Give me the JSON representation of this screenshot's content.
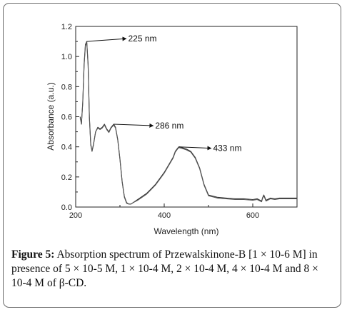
{
  "chart_data": {
    "type": "line",
    "xlabel": "Wavelength (nm)",
    "ylabel": "Absorbance (a.u.)",
    "xlim": [
      200,
      700
    ],
    "ylim": [
      0,
      1.2
    ],
    "xticks": [
      "200",
      "400",
      "600"
    ],
    "yticks": [
      "0.0",
      "0.2",
      "0.4",
      "0.6",
      "0.8",
      "1.0",
      "1.2"
    ],
    "grid": false,
    "series": [
      {
        "color": "#333333",
        "x": [
          210,
          213,
          216,
          219,
          222,
          225,
          228,
          231,
          234,
          237,
          240,
          245,
          250,
          255,
          260,
          265,
          270,
          275,
          280,
          286,
          290,
          295,
          300,
          305,
          310,
          315,
          320,
          325,
          330,
          340,
          350,
          360,
          370,
          380,
          390,
          400,
          410,
          420,
          425,
          430,
          433,
          440,
          450,
          460,
          470,
          480,
          490,
          500,
          520,
          540,
          560,
          580,
          600,
          610,
          620,
          622,
          625,
          630,
          640,
          650,
          660,
          670,
          680,
          690,
          700
        ],
        "y": [
          0.6,
          0.55,
          0.7,
          0.95,
          1.08,
          1.1,
          0.95,
          0.6,
          0.42,
          0.37,
          0.41,
          0.5,
          0.53,
          0.52,
          0.53,
          0.55,
          0.52,
          0.5,
          0.53,
          0.55,
          0.53,
          0.45,
          0.32,
          0.17,
          0.07,
          0.03,
          0.02,
          0.02,
          0.03,
          0.05,
          0.07,
          0.09,
          0.12,
          0.15,
          0.19,
          0.23,
          0.28,
          0.33,
          0.37,
          0.39,
          0.4,
          0.395,
          0.385,
          0.37,
          0.33,
          0.26,
          0.15,
          0.08,
          0.065,
          0.06,
          0.055,
          0.055,
          0.05,
          0.055,
          0.04,
          0.06,
          0.08,
          0.045,
          0.06,
          0.055,
          0.06,
          0.06,
          0.06,
          0.06,
          0.06
        ]
      },
      {
        "color": "#555555",
        "x": [
          210,
          213,
          216,
          219,
          222,
          225,
          228,
          231,
          234,
          237,
          240,
          245,
          250,
          255,
          260,
          265,
          270,
          275,
          280,
          286,
          290,
          295,
          300,
          305,
          310,
          315,
          320,
          325,
          330,
          340,
          350,
          360,
          370,
          380,
          390,
          400,
          410,
          420,
          425,
          430,
          433,
          440,
          450,
          460,
          470,
          480,
          490,
          500,
          520,
          540,
          560,
          580,
          600,
          610,
          620,
          622,
          625,
          630,
          640,
          650,
          660,
          670,
          680,
          690,
          700
        ],
        "y": [
          0.59,
          0.56,
          0.69,
          0.94,
          1.07,
          1.095,
          0.94,
          0.59,
          0.41,
          0.375,
          0.415,
          0.5,
          0.525,
          0.515,
          0.525,
          0.545,
          0.515,
          0.495,
          0.525,
          0.545,
          0.525,
          0.445,
          0.315,
          0.165,
          0.065,
          0.025,
          0.02,
          0.02,
          0.03,
          0.045,
          0.065,
          0.085,
          0.115,
          0.145,
          0.185,
          0.225,
          0.275,
          0.325,
          0.365,
          0.385,
          0.395,
          0.39,
          0.38,
          0.365,
          0.325,
          0.255,
          0.145,
          0.075,
          0.06,
          0.055,
          0.05,
          0.05,
          0.045,
          0.05,
          0.035,
          0.055,
          0.075,
          0.04,
          0.055,
          0.05,
          0.055,
          0.055,
          0.055,
          0.055,
          0.055
        ]
      }
    ],
    "annotations": [
      {
        "text": "225 nm",
        "x": 225,
        "y": 1.1
      },
      {
        "text": "286 nm",
        "x": 286,
        "y": 0.55
      },
      {
        "text": "433 nm",
        "x": 433,
        "y": 0.4
      }
    ]
  },
  "caption": {
    "label": "Figure 5:",
    "text": "Absorption spectrum of Przewalskinone-B [1 × 10-6 M] in presence of 5 × 10-5 M, 1 × 10-4 M, 2 × 10-4 M, 4 × 10-4 M and 8 × 10-4 M of β-CD."
  }
}
